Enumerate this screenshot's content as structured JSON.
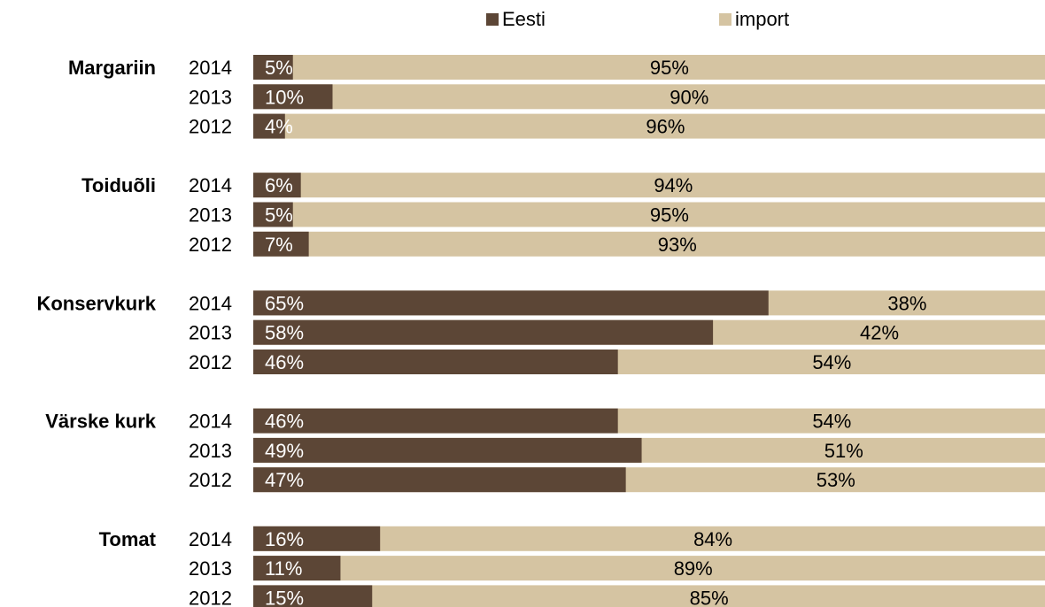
{
  "chart_data": {
    "type": "bar",
    "orientation": "horizontal",
    "stacked": true,
    "grid": false,
    "legend_position": "top",
    "xlim": [
      0,
      100
    ],
    "series": [
      {
        "name": "Eesti",
        "color": "#5c4636",
        "label_color": "#ffffff"
      },
      {
        "name": "import",
        "color": "#d5c4a2",
        "label_color": "#000000"
      }
    ],
    "groups": [
      {
        "name": "Margariin",
        "rows": [
          {
            "year": "2014",
            "eesti": 5,
            "import": 95,
            "eesti_label": "5%",
            "import_label": "95%"
          },
          {
            "year": "2013",
            "eesti": 10,
            "import": 90,
            "eesti_label": "10%",
            "import_label": "90%"
          },
          {
            "year": "2012",
            "eesti": 4,
            "import": 96,
            "eesti_label": "4%",
            "import_label": "96%"
          }
        ]
      },
      {
        "name": "Toiduõli",
        "rows": [
          {
            "year": "2014",
            "eesti": 6,
            "import": 94,
            "eesti_label": "6%",
            "import_label": "94%"
          },
          {
            "year": "2013",
            "eesti": 5,
            "import": 95,
            "eesti_label": "5%",
            "import_label": "95%"
          },
          {
            "year": "2012",
            "eesti": 7,
            "import": 93,
            "eesti_label": "7%",
            "import_label": "93%"
          }
        ]
      },
      {
        "name": "Konservkurk",
        "rows": [
          {
            "year": "2014",
            "eesti": 65,
            "import": 38,
            "eesti_label": "65%",
            "import_label": "38%"
          },
          {
            "year": "2013",
            "eesti": 58,
            "import": 42,
            "eesti_label": "58%",
            "import_label": "42%"
          },
          {
            "year": "2012",
            "eesti": 46,
            "import": 54,
            "eesti_label": "46%",
            "import_label": "54%"
          }
        ]
      },
      {
        "name": "Värske kurk",
        "rows": [
          {
            "year": "2014",
            "eesti": 46,
            "import": 54,
            "eesti_label": "46%",
            "import_label": "54%"
          },
          {
            "year": "2013",
            "eesti": 49,
            "import": 51,
            "eesti_label": "49%",
            "import_label": "51%"
          },
          {
            "year": "2012",
            "eesti": 47,
            "import": 53,
            "eesti_label": "47%",
            "import_label": "53%"
          }
        ]
      },
      {
        "name": "Tomat",
        "rows": [
          {
            "year": "2014",
            "eesti": 16,
            "import": 84,
            "eesti_label": "16%",
            "import_label": "84%"
          },
          {
            "year": "2013",
            "eesti": 11,
            "import": 89,
            "eesti_label": "11%",
            "import_label": "89%"
          },
          {
            "year": "2012",
            "eesti": 15,
            "import": 85,
            "eesti_label": "15%",
            "import_label": "85%"
          }
        ]
      }
    ]
  }
}
